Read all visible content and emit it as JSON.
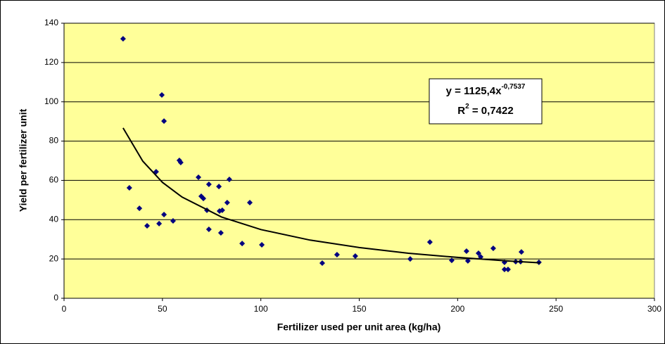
{
  "chart_data": {
    "type": "scatter",
    "x_label": "Fertilizer used per unit area (kg/ha)",
    "y_label": "Yield per fertilizer unit",
    "color": "#000080",
    "x": [
      30.0,
      33.2,
      38.3,
      42.2,
      46.8,
      48.3,
      49.7,
      50.8,
      50.8,
      55.4,
      58.6,
      59.3,
      68.3,
      69.7,
      70.8,
      72.6,
      73.6,
      73.6,
      78.7,
      79.0,
      80.4,
      79.7,
      82.9,
      84.0,
      90.5,
      94.4,
      100.5,
      131.2,
      138.7,
      148.0,
      175.9,
      185.9,
      197.0,
      204.5,
      205.2,
      210.6,
      211.7,
      218.1,
      223.8,
      223.8,
      225.6,
      229.5,
      232.0,
      232.4,
      241.3
    ],
    "values": [
      132.1,
      56.2,
      45.8,
      36.9,
      64.4,
      38.0,
      103.5,
      90.2,
      42.6,
      39.4,
      70.2,
      69.1,
      61.6,
      51.9,
      50.8,
      44.8,
      58.0,
      35.1,
      56.9,
      44.4,
      44.8,
      33.3,
      48.7,
      60.5,
      27.9,
      48.7,
      27.2,
      17.9,
      22.2,
      21.5,
      20.0,
      28.6,
      19.3,
      24.0,
      19.0,
      22.9,
      21.1,
      25.4,
      18.3,
      14.7,
      14.7,
      18.6,
      18.6,
      23.6,
      18.3
    ],
    "trendline": {
      "color": "#000000",
      "x": [
        30,
        40,
        50,
        60,
        80,
        100,
        125,
        150,
        175,
        200,
        225,
        242
      ],
      "values": [
        86.7,
        69.8,
        59.0,
        51.5,
        41.4,
        35.0,
        29.6,
        25.8,
        22.9,
        20.8,
        19.0,
        18.0
      ]
    },
    "annotation": {
      "eq_main": "y = 1125,4x",
      "eq_exp": "-0,7537",
      "r_main": "R",
      "r_exp": "2",
      "r_rest": " = 0,7422"
    },
    "xlim": [
      0,
      300
    ],
    "xticks": [
      0,
      50,
      100,
      150,
      200,
      250,
      300
    ],
    "ylim": [
      0,
      140
    ],
    "yticks": [
      0,
      20,
      40,
      60,
      80,
      100,
      120,
      140
    ],
    "grid": true
  }
}
